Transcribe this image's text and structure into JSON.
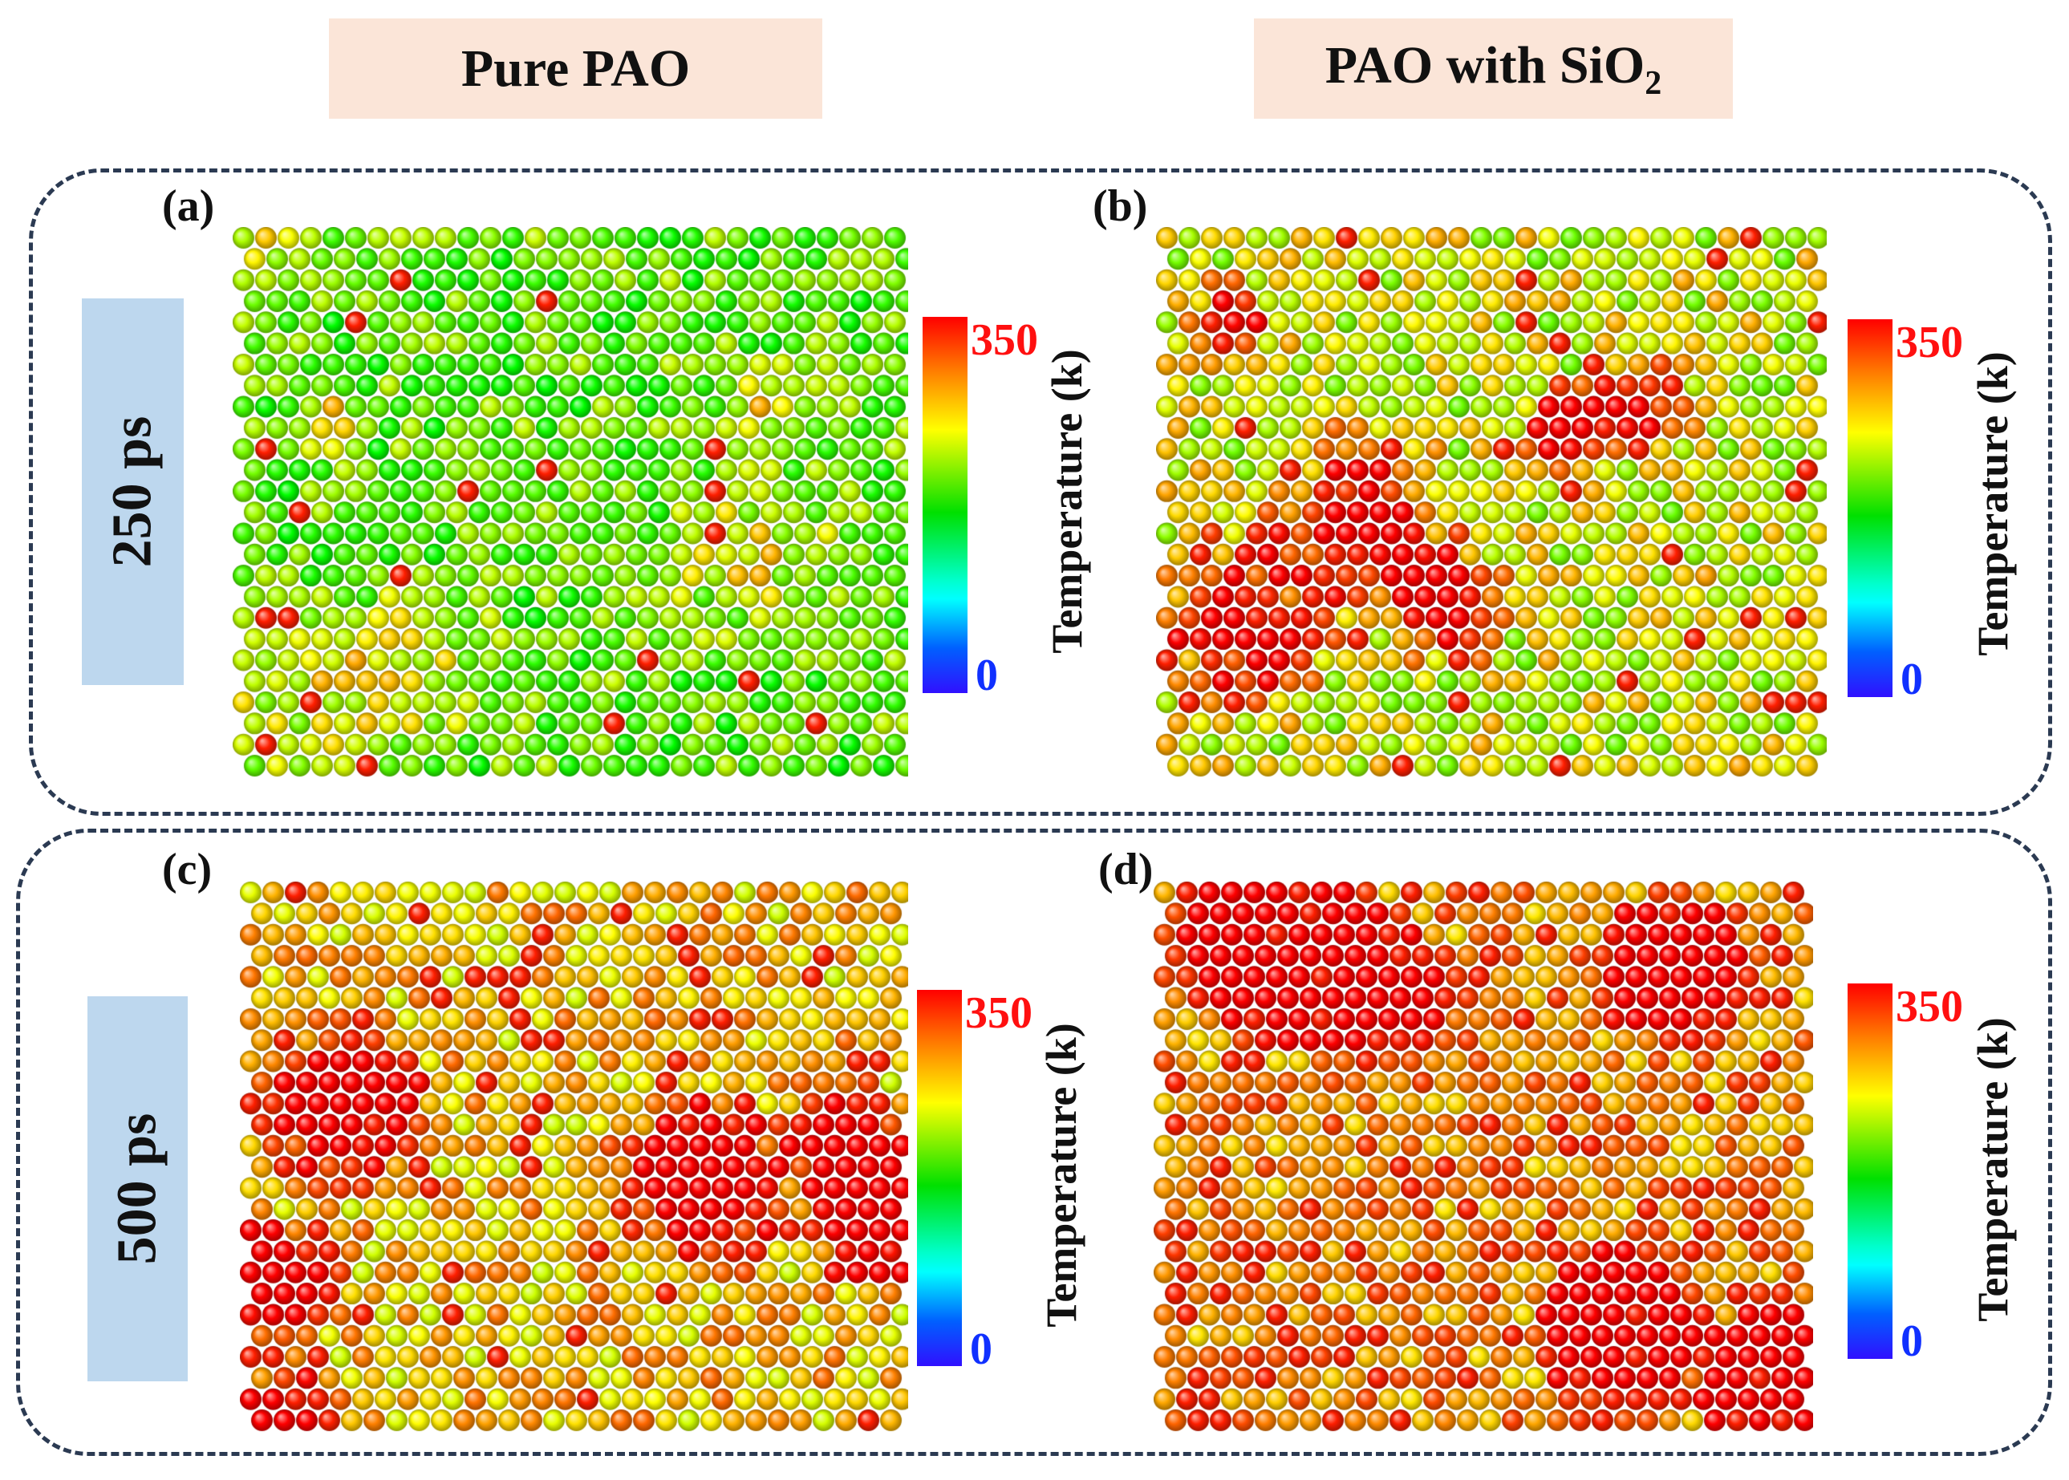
{
  "headers": {
    "left": "Pure PAO",
    "right_main": "PAO with SiO",
    "right_sub": "2"
  },
  "rows": [
    {
      "time_label": "250 ps"
    },
    {
      "time_label": "500 ps"
    }
  ],
  "panels": [
    {
      "label": "(a)",
      "system": "Pure PAO",
      "time": "250 ps"
    },
    {
      "label": "(b)",
      "system": "PAO with SiO2",
      "time": "250 ps"
    },
    {
      "label": "(c)",
      "system": "Pure PAO",
      "time": "500 ps"
    },
    {
      "label": "(d)",
      "system": "PAO with SiO2",
      "time": "500 ps"
    }
  ],
  "colorbar": {
    "title": "Temperature (k)",
    "max": "350",
    "min": "0",
    "max_color": "#ff1010",
    "min_color": "#1030ff"
  }
}
